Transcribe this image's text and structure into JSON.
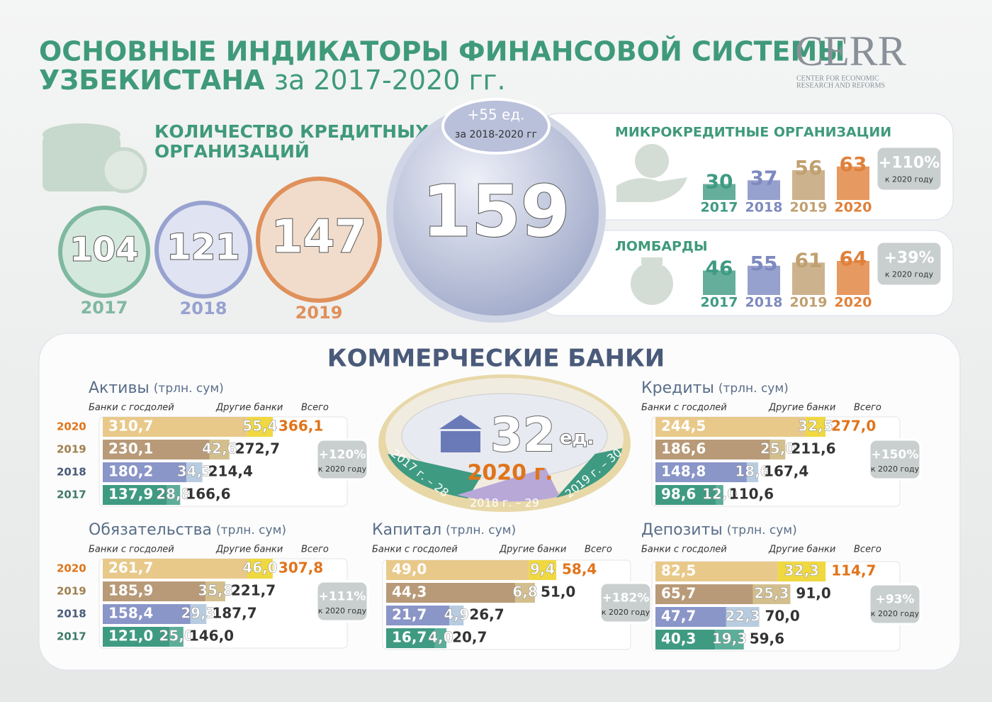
{
  "header": {
    "title_line1": "ОСНОВНЫЕ ИНДИКАТОРЫ ФИНАНСОВОЙ СИСТЕМЫ",
    "title_line2_bold": "УЗБЕКИСТАНА",
    "title_line2_rest": "за 2017-2020 гг.",
    "logo": "CERR",
    "logo_sub1": "CENTER FOR ECONOMIC",
    "logo_sub2": "RESEARCH AND REFORMS"
  },
  "credit_orgs": {
    "title1": "КОЛИЧЕСТВО КРЕДИТНЫХ",
    "title2": "ОРГАНИЗАЦИЙ",
    "values": [
      104,
      121,
      147
    ],
    "years": [
      "2017",
      "2018",
      "2019"
    ],
    "total": 159,
    "change": "+55 ед.",
    "change_period": "за 2018-2020 гг"
  },
  "micro": {
    "title": "МИКРОКРЕДИТНЫЕ ОРГАНИЗАЦИИ",
    "values": [
      30,
      37,
      56,
      63
    ],
    "years": [
      "2017",
      "2018",
      "2019",
      "2020"
    ],
    "growth": "+110%",
    "growth_note": "к 2020 году"
  },
  "pawnshops": {
    "title": "ЛОМБАРДЫ",
    "values": [
      46,
      55,
      61,
      64
    ],
    "years": [
      "2017",
      "2018",
      "2019",
      "2020"
    ],
    "growth": "+39%",
    "growth_note": "к 2020 году"
  },
  "banks": {
    "title": "КОММЕРЧЕСКИЕ БАНКИ",
    "count": 32,
    "unit": "ед.",
    "year": "2020 г.",
    "history": [
      "2017 г. – 28",
      "2018 г. – 29",
      "2019 г. – 30"
    ],
    "panels": [
      {
        "title": "Активы",
        "unit": "(трлн. сум)",
        "col_state": "Банки с госдолей",
        "col_other": "Другие банки",
        "col_total": "Всего",
        "growth": "+120%",
        "growth_note": "к 2020 году",
        "rows": [
          {
            "year": "2020",
            "values": [
              310.7,
              55.4,
              366.1
            ],
            "value_labels": [
              "310,7",
              "55,4",
              "366,1"
            ]
          },
          {
            "year": "2019",
            "values": [
              230.1,
              42.6,
              272.7
            ],
            "value_labels": [
              "230,1",
              "42,6",
              "272,7"
            ]
          },
          {
            "year": "2018",
            "values": [
              180.2,
              34.3,
              214.4
            ],
            "value_labels": [
              "180,2",
              "34,3",
              "214,4"
            ]
          },
          {
            "year": "2017",
            "values": [
              137.9,
              28.8,
              166.6
            ],
            "value_labels": [
              "137,9",
              "28,8",
              "166,6"
            ]
          }
        ]
      },
      {
        "title": "Кредиты",
        "unit": "(трлн. сум)",
        "col_state": "Банки с госдолей",
        "col_other": "Другие банки",
        "col_total": "Всего",
        "growth": "+150%",
        "growth_note": "к 2020 году",
        "rows": [
          {
            "values": [
              244.5,
              32.5,
              277.0
            ],
            "value_labels": [
              "244,5",
              "32,5",
              "277,0"
            ]
          },
          {
            "values": [
              186.6,
              25.0,
              211.6
            ],
            "value_labels": [
              "186,6",
              "25,0",
              "211,6"
            ]
          },
          {
            "values": [
              148.8,
              18.6,
              167.4
            ],
            "value_labels": [
              "148,8",
              "18,6",
              "167,4"
            ]
          },
          {
            "values": [
              98.6,
              12.0,
              110.6
            ],
            "value_labels": [
              "98,6",
              "12,0",
              "110,6"
            ]
          }
        ]
      },
      {
        "title": "Обязательства",
        "unit": "(трлн. сум)",
        "col_state": "Банки с госдолей",
        "col_other": "Другие банки",
        "col_total": "Всего",
        "growth": "+111%",
        "growth_note": "к 2020 году",
        "rows": [
          {
            "year": "2020",
            "values": [
              261.7,
              46.0,
              307.8
            ],
            "value_labels": [
              "261,7",
              "46,0",
              "307,8"
            ]
          },
          {
            "year": "2019",
            "values": [
              185.9,
              35.8,
              221.7
            ],
            "value_labels": [
              "185,9",
              "35,8",
              "221,7"
            ]
          },
          {
            "year": "2018",
            "values": [
              158.4,
              29.3,
              187.7
            ],
            "value_labels": [
              "158,4",
              "29,3",
              "187,7"
            ]
          },
          {
            "year": "2017",
            "values": [
              121.0,
              25.0,
              146.0
            ],
            "value_labels": [
              "121,0",
              "25,0",
              "146,0"
            ]
          }
        ]
      },
      {
        "title": "Капитал",
        "unit": "(трлн. сум)",
        "col_state": "Банки с госдолей",
        "col_other": "Другие банки",
        "col_total": "Всего",
        "growth": "+182%",
        "growth_note": "к 2020 году",
        "rows": [
          {
            "values": [
              49.0,
              9.4,
              58.4
            ],
            "value_labels": [
              "49,0",
              "9,4",
              "58,4"
            ]
          },
          {
            "values": [
              44.3,
              6.8,
              51.0
            ],
            "value_labels": [
              "44,3",
              "6,8",
              "51,0"
            ]
          },
          {
            "values": [
              21.7,
              4.9,
              26.7
            ],
            "value_labels": [
              "21,7",
              "4,9",
              "26,7"
            ]
          },
          {
            "values": [
              16.7,
              4.0,
              20.7
            ],
            "value_labels": [
              "16,7",
              "4,0",
              "20,7"
            ]
          }
        ]
      },
      {
        "title": "Депозиты",
        "unit": "(трлн. сум)",
        "col_state": "Банки с госдолей",
        "col_other": "Другие банки",
        "col_total": "Всего",
        "growth": "+93%",
        "growth_note": "к 2020 году",
        "rows": [
          {
            "values": [
              82.5,
              32.3,
              114.7
            ],
            "value_labels": [
              "82,5",
              "32,3",
              "114,7"
            ]
          },
          {
            "values": [
              65.7,
              25.3,
              91.0
            ],
            "value_labels": [
              "65,7",
              "25,3",
              "91,0"
            ]
          },
          {
            "values": [
              47.7,
              22.3,
              70.0
            ],
            "value_labels": [
              "47,7",
              "22,3",
              "70,0"
            ]
          },
          {
            "values": [
              40.3,
              19.3,
              59.6
            ],
            "value_labels": [
              "40,3",
              "19,3",
              "59,6"
            ]
          }
        ]
      }
    ]
  }
}
